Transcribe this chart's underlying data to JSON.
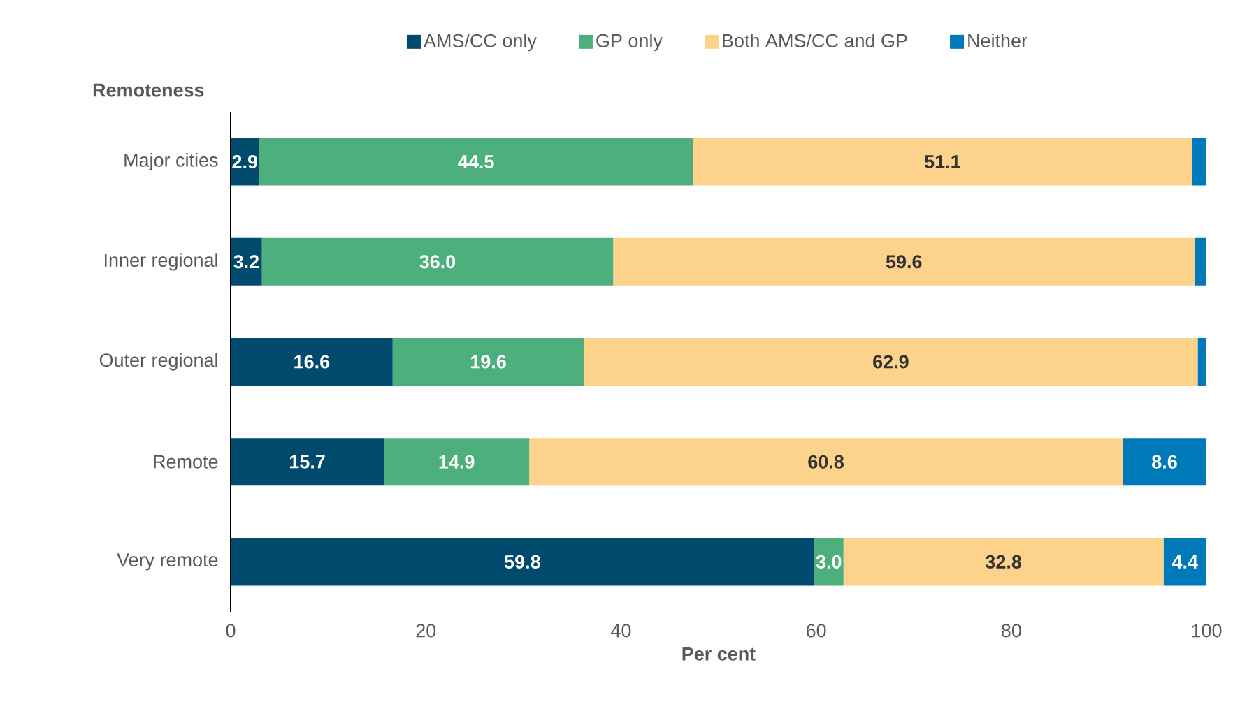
{
  "chart_data": {
    "type": "bar",
    "orientation": "horizontal",
    "stacked": true,
    "ylabel": "Remoteness",
    "xlabel": "Per cent",
    "categories": [
      "Major cities",
      "Inner regional",
      "Outer regional",
      "Remote",
      "Very remote"
    ],
    "series": [
      {
        "name": "AMS/CC only",
        "color": "#004a6d",
        "values": [
          2.9,
          3.2,
          16.6,
          15.7,
          59.8
        ],
        "value_labels": [
          "2.9",
          "3.2",
          "16.6",
          "15.7",
          "59.8"
        ]
      },
      {
        "name": "GP only",
        "color": "#4daf7c",
        "values": [
          44.5,
          36.0,
          19.6,
          14.9,
          3.0
        ],
        "value_labels": [
          "44.5",
          "36.0",
          "19.6",
          "14.9",
          "3.0"
        ]
      },
      {
        "name": "Both AMS/CC and GP",
        "color": "#fdd38c",
        "values": [
          51.1,
          59.6,
          62.9,
          60.8,
          32.8
        ],
        "value_labels": [
          "51.1",
          "59.6",
          "62.9",
          "60.8",
          "32.8"
        ]
      },
      {
        "name": "Neither",
        "color": "#0079b8",
        "values": [
          1.5,
          1.2,
          0.9,
          8.6,
          4.4
        ],
        "value_labels": [
          null,
          null,
          null,
          "8.6",
          "4.4"
        ]
      }
    ],
    "xlim": [
      0,
      100
    ],
    "xticks": [
      0,
      20,
      40,
      60,
      80,
      100
    ],
    "legend": "top",
    "grid": false
  }
}
